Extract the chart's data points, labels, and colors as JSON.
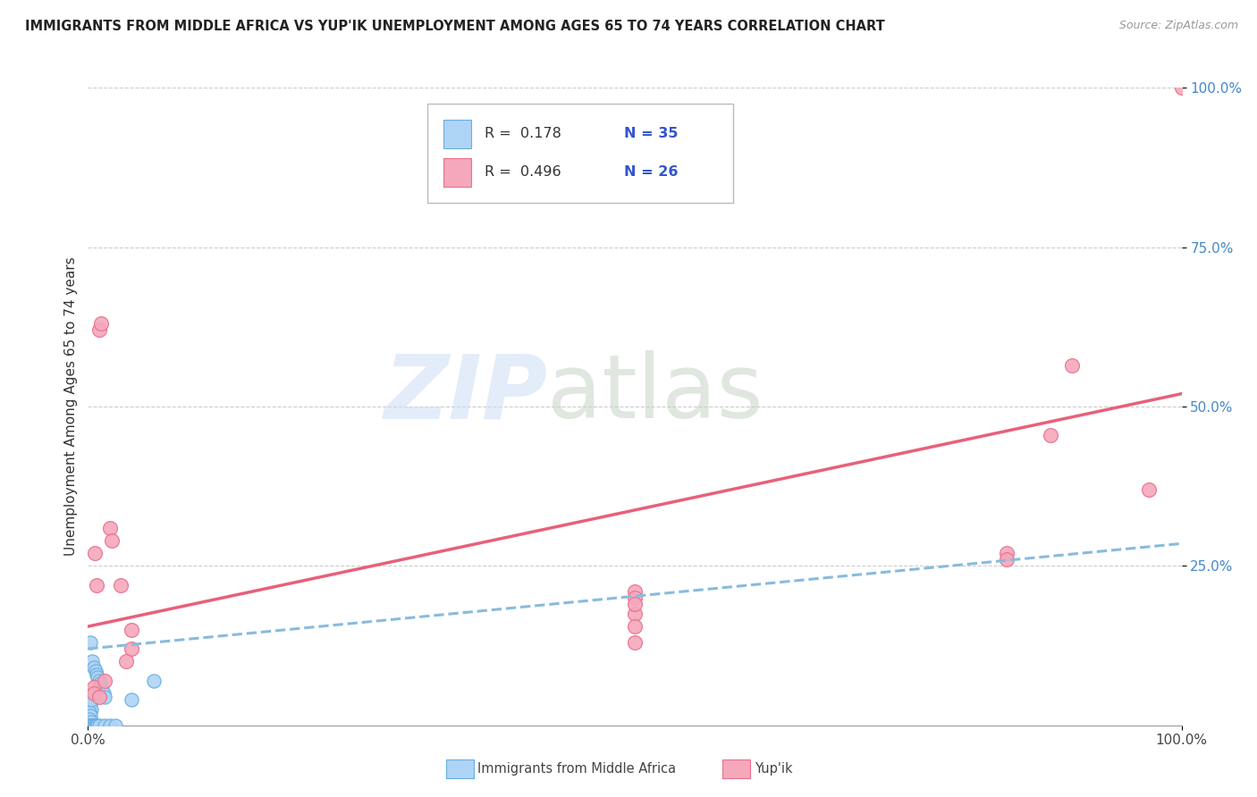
{
  "title": "IMMIGRANTS FROM MIDDLE AFRICA VS YUP'IK UNEMPLOYMENT AMONG AGES 65 TO 74 YEARS CORRELATION CHART",
  "source": "Source: ZipAtlas.com",
  "ylabel": "Unemployment Among Ages 65 to 74 years",
  "xlim": [
    0,
    1
  ],
  "ylim": [
    0,
    1
  ],
  "ytick_labels": [
    "100.0%",
    "75.0%",
    "50.0%",
    "25.0%"
  ],
  "ytick_positions": [
    1.0,
    0.75,
    0.5,
    0.25
  ],
  "blue_color": "#aed4f5",
  "pink_color": "#f5a8bc",
  "blue_edge_color": "#6aaee0",
  "pink_edge_color": "#e8708a",
  "blue_line_color": "#88bbdd",
  "pink_line_color": "#e8607a",
  "watermark_zip_color": "#ccddf0",
  "watermark_atlas_color": "#c8d8c8",
  "blue_dots": [
    [
      0.002,
      0.13
    ],
    [
      0.004,
      0.1
    ],
    [
      0.005,
      0.09
    ],
    [
      0.007,
      0.085
    ],
    [
      0.008,
      0.08
    ],
    [
      0.009,
      0.075
    ],
    [
      0.01,
      0.07
    ],
    [
      0.011,
      0.065
    ],
    [
      0.012,
      0.06
    ],
    [
      0.013,
      0.055
    ],
    [
      0.014,
      0.05
    ],
    [
      0.015,
      0.045
    ],
    [
      0.002,
      0.03
    ],
    [
      0.003,
      0.025
    ],
    [
      0.001,
      0.02
    ],
    [
      0.002,
      0.015
    ],
    [
      0.001,
      0.01
    ],
    [
      0.003,
      0.005
    ],
    [
      0.0,
      0.0
    ],
    [
      0.001,
      0.0
    ],
    [
      0.002,
      0.0
    ],
    [
      0.003,
      0.0
    ],
    [
      0.004,
      0.0
    ],
    [
      0.005,
      0.0
    ],
    [
      0.006,
      0.0
    ],
    [
      0.007,
      0.0
    ],
    [
      0.008,
      0.0
    ],
    [
      0.009,
      0.0
    ],
    [
      0.01,
      0.0
    ],
    [
      0.015,
      0.0
    ],
    [
      0.02,
      0.0
    ],
    [
      0.04,
      0.04
    ],
    [
      0.06,
      0.07
    ],
    [
      0.003,
      0.04
    ],
    [
      0.025,
      0.0
    ]
  ],
  "pink_dots": [
    [
      0.006,
      0.27
    ],
    [
      0.008,
      0.22
    ],
    [
      0.01,
      0.62
    ],
    [
      0.012,
      0.63
    ],
    [
      0.02,
      0.31
    ],
    [
      0.022,
      0.29
    ],
    [
      0.03,
      0.22
    ],
    [
      0.5,
      0.21
    ],
    [
      0.5,
      0.175
    ],
    [
      0.5,
      0.155
    ],
    [
      0.5,
      0.13
    ],
    [
      0.84,
      0.27
    ],
    [
      0.84,
      0.26
    ],
    [
      0.88,
      0.455
    ],
    [
      0.9,
      0.565
    ],
    [
      0.97,
      0.37
    ],
    [
      1.0,
      1.0
    ],
    [
      0.005,
      0.06
    ],
    [
      0.015,
      0.07
    ],
    [
      0.005,
      0.05
    ],
    [
      0.01,
      0.045
    ],
    [
      0.04,
      0.15
    ],
    [
      0.04,
      0.12
    ],
    [
      0.5,
      0.2
    ],
    [
      0.5,
      0.19
    ],
    [
      0.035,
      0.1
    ]
  ],
  "blue_trend": [
    0.0,
    0.12,
    1.0,
    0.285
  ],
  "pink_trend": [
    0.0,
    0.155,
    1.0,
    0.52
  ],
  "legend_r1": "R =  0.178",
  "legend_n1": "N = 35",
  "legend_r2": "R =  0.496",
  "legend_n2": "N = 26",
  "legend_label1": "Immigrants from Middle Africa",
  "legend_label2": "Yup'ik"
}
